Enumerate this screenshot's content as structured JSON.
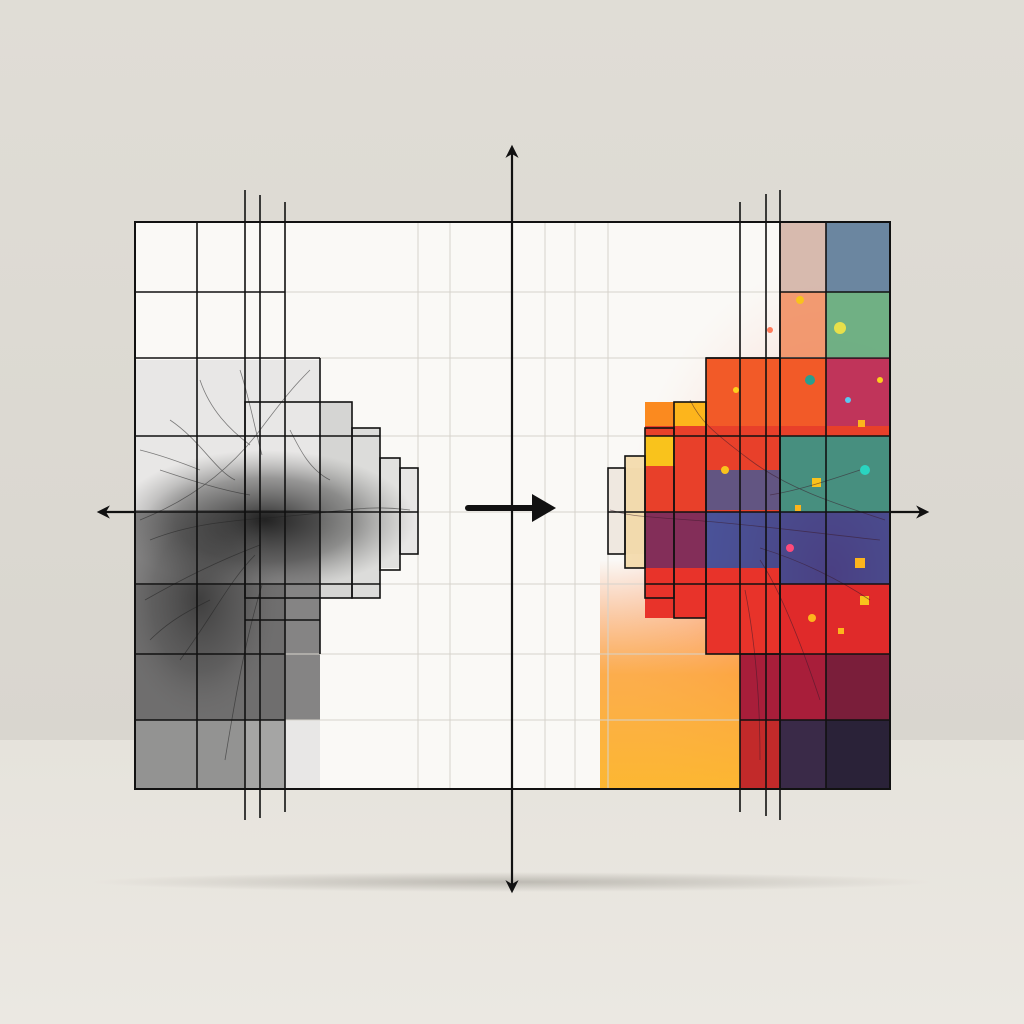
{
  "scene": {
    "description_free": true,
    "left_panel": {
      "style": "monochrome-sketch",
      "subject": "tree-branches-pixelated"
    },
    "right_panel": {
      "style": "vivid-color",
      "subject": "tree-branches-pixelated"
    },
    "center_arrow": "right-arrow-icon",
    "axes": {
      "vertical": "up-down-arrow-icon",
      "horizontal": "left-right-arrow-icon"
    },
    "colors": {
      "background_wall": "#e2dfd8",
      "background_floor": "#e8e5df",
      "canvas": "#faf9f6",
      "ink": "#111111",
      "warm_red": "#e8332a",
      "warm_orange": "#fda31a",
      "warm_yellow": "#f9c31c",
      "deep_purple": "#3a2a48",
      "teal": "#2a9e8e",
      "slate_blue": "#6b86a0"
    }
  }
}
